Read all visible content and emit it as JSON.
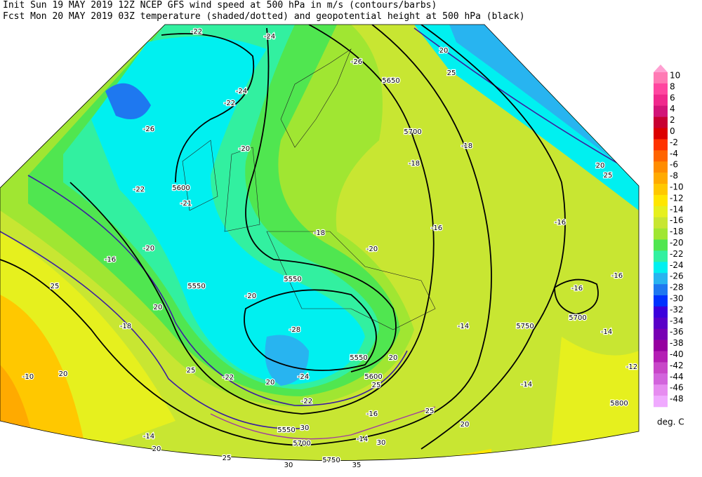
{
  "header": {
    "line1": "Init  Sun 19 MAY 2019 12Z  NCEP GFS wind speed at 500 hPa in m/s (contours/barbs)",
    "line2": "Fcst Mon 20 MAY 2019 03Z  temperature (shaded/dotted) and geopotential height at 500 hPa (black)"
  },
  "colorbar": {
    "labels": [
      10,
      8,
      6,
      4,
      2,
      0,
      -2,
      -4,
      -6,
      -8,
      -10,
      -12,
      -14,
      -16,
      -18,
      -20,
      -22,
      -24,
      -26,
      -28,
      -30,
      -32,
      -34,
      -36,
      -38,
      -40,
      -42,
      -44,
      -46,
      -48
    ],
    "colors": [
      "#ff7ab4",
      "#ff46a0",
      "#f0288c",
      "#d21478",
      "#c80032",
      "#dc0000",
      "#ff3200",
      "#ff6400",
      "#ff8c00",
      "#ffaa00",
      "#ffc800",
      "#ffe600",
      "#e6f01e",
      "#c8e632",
      "#a0e632",
      "#50e650",
      "#32f0a0",
      "#00f0f0",
      "#28b4f0",
      "#1e78f0",
      "#0032ff",
      "#3c00dc",
      "#5a00c8",
      "#7800b4",
      "#9600a0",
      "#b41eb4",
      "#c846c8",
      "#d264dc",
      "#e68cf0",
      "#f0aaff"
    ],
    "units": "deg. C"
  },
  "map_labels": [
    "-22",
    "-24",
    "20",
    "25",
    "-26",
    "5650",
    "-24",
    "-22",
    "-26",
    "5700",
    "-18",
    "-20",
    "-18",
    "20",
    "25",
    "-22",
    "5600",
    "-21",
    "-20",
    "-16",
    "-16",
    "-18",
    "-20",
    "-16",
    "25",
    "5550",
    "5550",
    "-20",
    "-16",
    "-16",
    "5700",
    "-14",
    "5750",
    "-14",
    "-18",
    "-28",
    "20",
    "5550",
    "20",
    "-12",
    "-10",
    "20",
    "25",
    "-22",
    "20",
    "-24",
    "5600",
    "25",
    "-14",
    "-22",
    "-16",
    "25",
    "5800",
    "-14",
    "20",
    "5550",
    "30",
    "5700",
    "-14",
    "30",
    "20",
    "25",
    "30",
    "5750",
    "35"
  ]
}
